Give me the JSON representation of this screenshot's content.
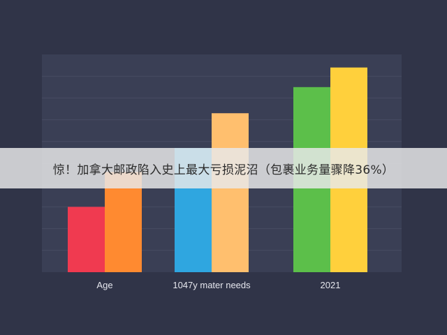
{
  "banner": {
    "text": "惊！加拿大邮政陷入史上最大亏损泥沼（包裹业务量骤降36%）"
  },
  "chart_data": {
    "type": "bar",
    "categories": [
      "Age",
      "1047y mater needs",
      "2021"
    ],
    "series": [
      {
        "values": [
          3,
          5.7,
          8.5
        ],
        "colors": [
          "#f03a50",
          "#2fa6e0",
          "#5cbf4a"
        ]
      },
      {
        "values": [
          4.6,
          7.3,
          9.4
        ],
        "colors": [
          "#ff8a30",
          "#ffbf6e",
          "#ffd03c"
        ]
      }
    ],
    "ylim": [
      0,
      10
    ],
    "grid": true,
    "legend": "none",
    "plot_background": "#3a3f55",
    "grid_color": "#474c63",
    "tick_label_color": "#e6e7ee"
  }
}
